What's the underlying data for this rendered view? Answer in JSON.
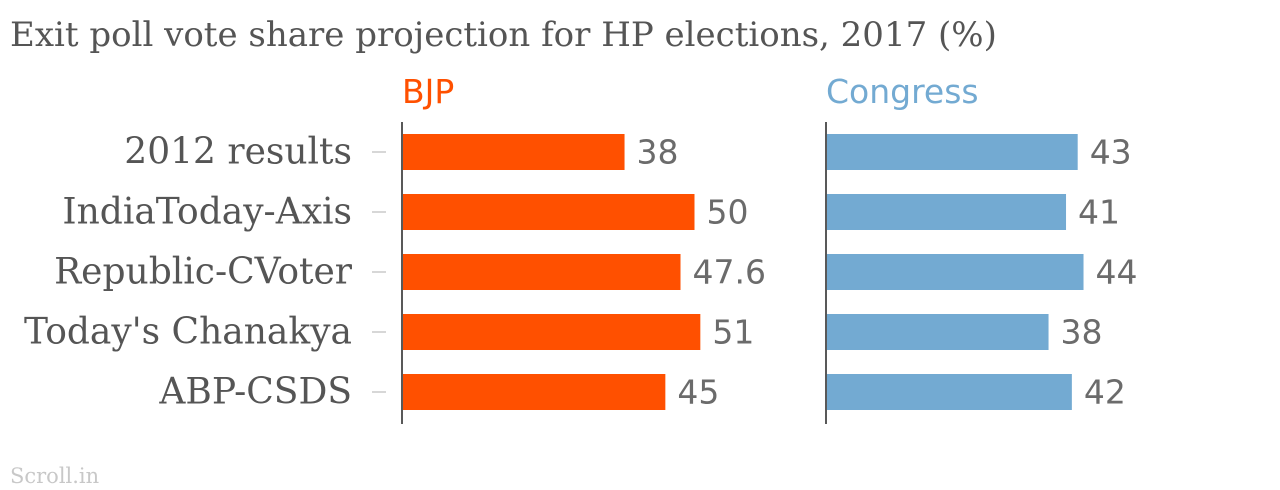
{
  "chart_data": {
    "type": "bar",
    "orientation": "horizontal",
    "title": "Exit poll vote share projection for HP elections, 2017 (%)",
    "categories": [
      "2012 results",
      "IndiaToday-Axis",
      "Republic-CVoter",
      "Today's Chanakya",
      "ABP-CSDS"
    ],
    "series": [
      {
        "name": "BJP",
        "color": "#ff5000",
        "values": [
          38,
          50,
          47.6,
          51,
          45
        ]
      },
      {
        "name": "Congress",
        "color": "#73aad2",
        "values": [
          43,
          41,
          44,
          38,
          42
        ]
      }
    ],
    "xlim": [
      0,
      55
    ],
    "grid": false,
    "layout": "small-multiples"
  },
  "source": "Scroll.in"
}
